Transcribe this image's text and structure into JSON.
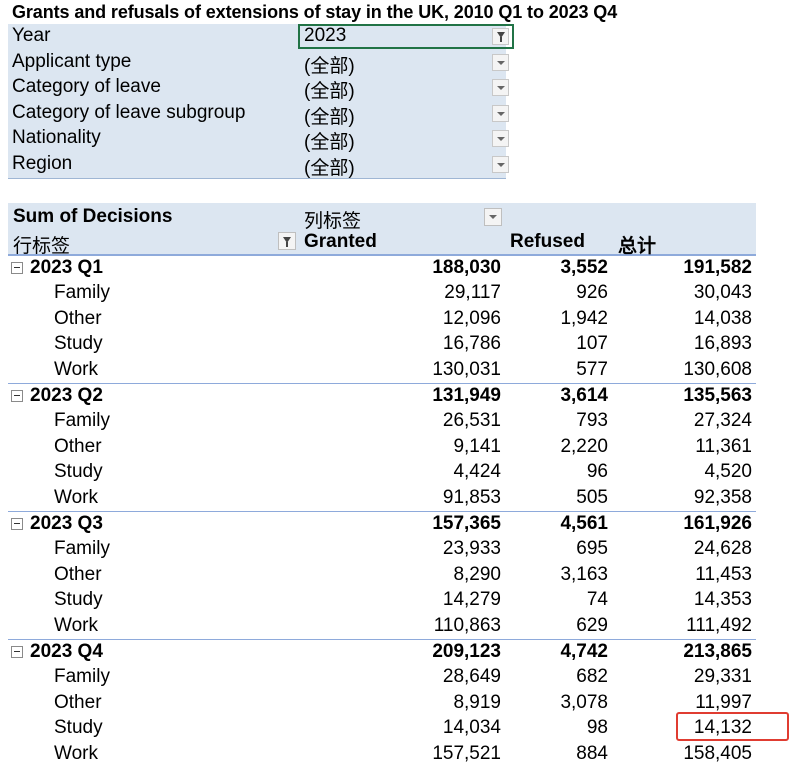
{
  "title": "Grants and refusals of extensions of stay in the UK, 2010 Q1 to 2023 Q4",
  "filters": [
    {
      "label": "Year",
      "value": "2023"
    },
    {
      "label": "Applicant type",
      "value": "(全部)"
    },
    {
      "label": "Category of leave",
      "value": "(全部)"
    },
    {
      "label": "Category of leave subgroup",
      "value": "(全部)"
    },
    {
      "label": "Nationality",
      "value": "(全部)"
    },
    {
      "label": "Region",
      "value": "(全部)"
    }
  ],
  "pivot_header": {
    "values_label": "Sum of Decisions",
    "column_labels": "列标签",
    "row_labels": "行标签",
    "col_granted": "Granted",
    "col_refused": "Refused",
    "col_total": "总计"
  },
  "groups": [
    {
      "label": "2023 Q1",
      "granted": "188,030",
      "refused": "3,552",
      "total": "191,582",
      "items": [
        {
          "label": "Family",
          "granted": "29,117",
          "refused": "926",
          "total": "30,043"
        },
        {
          "label": "Other",
          "granted": "12,096",
          "refused": "1,942",
          "total": "14,038"
        },
        {
          "label": "Study",
          "granted": "16,786",
          "refused": "107",
          "total": "16,893"
        },
        {
          "label": "Work",
          "granted": "130,031",
          "refused": "577",
          "total": "130,608"
        }
      ]
    },
    {
      "label": "2023 Q2",
      "granted": "131,949",
      "refused": "3,614",
      "total": "135,563",
      "items": [
        {
          "label": "Family",
          "granted": "26,531",
          "refused": "793",
          "total": "27,324"
        },
        {
          "label": "Other",
          "granted": "9,141",
          "refused": "2,220",
          "total": "11,361"
        },
        {
          "label": "Study",
          "granted": "4,424",
          "refused": "96",
          "total": "4,520"
        },
        {
          "label": "Work",
          "granted": "91,853",
          "refused": "505",
          "total": "92,358"
        }
      ]
    },
    {
      "label": "2023 Q3",
      "granted": "157,365",
      "refused": "4,561",
      "total": "161,926",
      "items": [
        {
          "label": "Family",
          "granted": "23,933",
          "refused": "695",
          "total": "24,628"
        },
        {
          "label": "Other",
          "granted": "8,290",
          "refused": "3,163",
          "total": "11,453"
        },
        {
          "label": "Study",
          "granted": "14,279",
          "refused": "74",
          "total": "14,353"
        },
        {
          "label": "Work",
          "granted": "110,863",
          "refused": "629",
          "total": "111,492"
        }
      ]
    },
    {
      "label": "2023 Q4",
      "granted": "209,123",
      "refused": "4,742",
      "total": "213,865",
      "items": [
        {
          "label": "Family",
          "granted": "28,649",
          "refused": "682",
          "total": "29,331"
        },
        {
          "label": "Other",
          "granted": "8,919",
          "refused": "3,078",
          "total": "11,997"
        },
        {
          "label": "Study",
          "granted": "14,034",
          "refused": "98",
          "total": "14,132"
        },
        {
          "label": "Work",
          "granted": "157,521",
          "refused": "884",
          "total": "158,405"
        }
      ]
    }
  ],
  "colors": {
    "header_bg": "#dce6f1",
    "selection": "#217346",
    "highlight": "#e03c31"
  }
}
